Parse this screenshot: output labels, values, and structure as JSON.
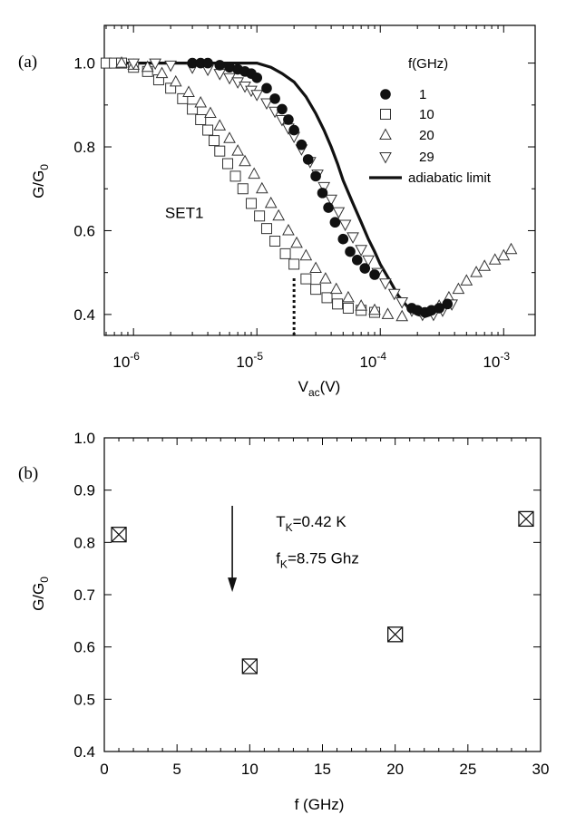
{
  "chart_data": [
    {
      "id": "a",
      "panel_label": "(a)",
      "type": "scatter",
      "xscale": "log",
      "xlabel_main": "V",
      "xlabel_sub": "ac",
      "xlabel_unit": "(V)",
      "ylabel_main": "G/G",
      "ylabel_sub": "0",
      "xlim": [
        5.8e-07,
        0.0018
      ],
      "ylim": [
        0.35,
        1.09
      ],
      "xticks": [
        {
          "value": 1e-06,
          "base": "10",
          "exp": "-6"
        },
        {
          "value": 1e-05,
          "base": "10",
          "exp": "-5"
        },
        {
          "value": 0.0001,
          "base": "10",
          "exp": "-4"
        },
        {
          "value": 0.001,
          "base": "10",
          "exp": "-3"
        }
      ],
      "yticks": [
        {
          "value": 0.4,
          "label": "0.4"
        },
        {
          "value": 0.6,
          "label": "0.6"
        },
        {
          "value": 0.8,
          "label": "0.8"
        },
        {
          "value": 1.0,
          "label": "1.0"
        }
      ],
      "annotation": {
        "text": "SET1",
        "x": 1.8e-06,
        "y": 0.63
      },
      "marker_line": {
        "x": 2e-05,
        "y_from": 0.35,
        "y_to": 0.49
      },
      "legend_title": "f(GHz)",
      "series": [
        {
          "name": "1",
          "marker": "filled-circle",
          "points": [
            [
              3e-06,
              1.0
            ],
            [
              3.5e-06,
              1.0
            ],
            [
              4e-06,
              1.0
            ],
            [
              5e-06,
              0.995
            ],
            [
              6e-06,
              0.99
            ],
            [
              7e-06,
              0.985
            ],
            [
              8e-06,
              0.98
            ],
            [
              9e-06,
              0.975
            ],
            [
              1e-05,
              0.965
            ],
            [
              1.2e-05,
              0.94
            ],
            [
              1.4e-05,
              0.915
            ],
            [
              1.6e-05,
              0.89
            ],
            [
              1.8e-05,
              0.865
            ],
            [
              2e-05,
              0.84
            ],
            [
              2.3e-05,
              0.805
            ],
            [
              2.6e-05,
              0.77
            ],
            [
              3e-05,
              0.73
            ],
            [
              3.4e-05,
              0.69
            ],
            [
              3.8e-05,
              0.655
            ],
            [
              4.3e-05,
              0.62
            ],
            [
              5e-05,
              0.58
            ],
            [
              5.7e-05,
              0.55
            ],
            [
              6.5e-05,
              0.53
            ],
            [
              7.5e-05,
              0.51
            ],
            [
              9e-05,
              0.495
            ],
            [
              0.00018,
              0.415
            ],
            [
              0.0002,
              0.41
            ],
            [
              0.00023,
              0.405
            ],
            [
              0.00026,
              0.41
            ],
            [
              0.0003,
              0.415
            ],
            [
              0.00035,
              0.425
            ]
          ]
        },
        {
          "name": "10",
          "marker": "square",
          "points": [
            [
              6e-07,
              1.0
            ],
            [
              7e-07,
              1.0
            ],
            [
              8e-07,
              1.0
            ],
            [
              1e-06,
              0.99
            ],
            [
              1.3e-06,
              0.98
            ],
            [
              1.6e-06,
              0.96
            ],
            [
              2e-06,
              0.94
            ],
            [
              2.5e-06,
              0.915
            ],
            [
              3e-06,
              0.89
            ],
            [
              3.5e-06,
              0.865
            ],
            [
              4e-06,
              0.84
            ],
            [
              4.5e-06,
              0.815
            ],
            [
              5e-06,
              0.79
            ],
            [
              5.8e-06,
              0.76
            ],
            [
              6.7e-06,
              0.73
            ],
            [
              7.7e-06,
              0.7
            ],
            [
              9e-06,
              0.665
            ],
            [
              1.05e-05,
              0.635
            ],
            [
              1.2e-05,
              0.605
            ],
            [
              1.4e-05,
              0.575
            ],
            [
              1.7e-05,
              0.545
            ],
            [
              2e-05,
              0.52
            ],
            [
              2.5e-05,
              0.485
            ],
            [
              3e-05,
              0.46
            ],
            [
              3.7e-05,
              0.44
            ],
            [
              4.5e-05,
              0.425
            ],
            [
              5.5e-05,
              0.415
            ],
            [
              7e-05,
              0.41
            ],
            [
              9e-05,
              0.405
            ]
          ]
        },
        {
          "name": "20",
          "marker": "triangle-up",
          "points": [
            [
              8e-07,
              1.0
            ],
            [
              1e-06,
              0.995
            ],
            [
              1.3e-06,
              0.99
            ],
            [
              1.7e-06,
              0.975
            ],
            [
              2.2e-06,
              0.955
            ],
            [
              2.8e-06,
              0.93
            ],
            [
              3.5e-06,
              0.905
            ],
            [
              4.2e-06,
              0.88
            ],
            [
              5e-06,
              0.85
            ],
            [
              6e-06,
              0.82
            ],
            [
              7e-06,
              0.79
            ],
            [
              8e-06,
              0.765
            ],
            [
              9.5e-06,
              0.735
            ],
            [
              1.1e-05,
              0.7
            ],
            [
              1.3e-05,
              0.665
            ],
            [
              1.5e-05,
              0.635
            ],
            [
              1.8e-05,
              0.6
            ],
            [
              2.1e-05,
              0.57
            ],
            [
              2.5e-05,
              0.54
            ],
            [
              3e-05,
              0.51
            ],
            [
              3.6e-05,
              0.485
            ],
            [
              4.4e-05,
              0.46
            ],
            [
              5.5e-05,
              0.44
            ],
            [
              7e-05,
              0.42
            ],
            [
              9e-05,
              0.41
            ],
            [
              0.000115,
              0.4
            ],
            [
              0.00015,
              0.395
            ],
            [
              0.0003,
              0.42
            ],
            [
              0.00036,
              0.44
            ],
            [
              0.00043,
              0.46
            ],
            [
              0.0005,
              0.48
            ],
            [
              0.0006,
              0.5
            ],
            [
              0.0007,
              0.515
            ],
            [
              0.00085,
              0.53
            ],
            [
              0.001,
              0.54
            ],
            [
              0.00115,
              0.555
            ]
          ]
        },
        {
          "name": "29",
          "marker": "triangle-down",
          "points": [
            [
              1e-06,
              1.0
            ],
            [
              1.5e-06,
              1.0
            ],
            [
              2e-06,
              0.995
            ],
            [
              3e-06,
              0.99
            ],
            [
              4e-06,
              0.985
            ],
            [
              5e-06,
              0.975
            ],
            [
              6e-06,
              0.965
            ],
            [
              7e-06,
              0.955
            ],
            [
              8e-06,
              0.945
            ],
            [
              9e-06,
              0.935
            ],
            [
              1e-05,
              0.925
            ],
            [
              1.2e-05,
              0.905
            ],
            [
              1.4e-05,
              0.885
            ],
            [
              1.6e-05,
              0.865
            ],
            [
              1.8e-05,
              0.845
            ],
            [
              2e-05,
              0.825
            ],
            [
              2.3e-05,
              0.795
            ],
            [
              2.7e-05,
              0.765
            ],
            [
              3.1e-05,
              0.735
            ],
            [
              3.5e-05,
              0.705
            ],
            [
              4e-05,
              0.675
            ],
            [
              4.6e-05,
              0.645
            ],
            [
              5.2e-05,
              0.615
            ],
            [
              6e-05,
              0.585
            ],
            [
              7e-05,
              0.555
            ],
            [
              8e-05,
              0.53
            ],
            [
              9.5e-05,
              0.5
            ],
            [
              0.00011,
              0.475
            ],
            [
              0.00013,
              0.45
            ],
            [
              0.00015,
              0.43
            ],
            [
              0.00018,
              0.41
            ],
            [
              0.00022,
              0.4
            ],
            [
              0.00027,
              0.4
            ],
            [
              0.00032,
              0.41
            ],
            [
              0.00038,
              0.425
            ]
          ]
        }
      ],
      "line_series": [
        {
          "name": "adiabatic limit",
          "points": [
            [
              6e-07,
              1.0
            ],
            [
              1e-05,
              1.0
            ],
            [
              1.3e-05,
              0.99
            ],
            [
              1.6e-05,
              0.975
            ],
            [
              2e-05,
              0.955
            ],
            [
              2.5e-05,
              0.92
            ],
            [
              3e-05,
              0.88
            ],
            [
              3.5e-05,
              0.84
            ],
            [
              4e-05,
              0.8
            ],
            [
              4.5e-05,
              0.76
            ],
            [
              5e-05,
              0.72
            ],
            [
              6e-05,
              0.665
            ],
            [
              7e-05,
              0.62
            ],
            [
              8e-05,
              0.58
            ],
            [
              9e-05,
              0.55
            ],
            [
              0.0001,
              0.52
            ],
            [
              0.00012,
              0.48
            ],
            [
              0.00014,
              0.445
            ],
            [
              0.00017,
              0.415
            ],
            [
              0.0002,
              0.4
            ],
            [
              0.00023,
              0.395
            ],
            [
              0.00026,
              0.4
            ]
          ]
        }
      ]
    },
    {
      "id": "b",
      "panel_label": "(b)",
      "type": "scatter",
      "xscale": "linear",
      "xlabel": "f (GHz)",
      "ylabel_main": "G/G",
      "ylabel_sub": "0",
      "xlim": [
        0,
        30
      ],
      "ylim": [
        0.4,
        1.0
      ],
      "xticks": [
        0,
        5,
        10,
        15,
        20,
        25,
        30
      ],
      "yticks": [
        {
          "value": 0.4,
          "label": "0.4"
        },
        {
          "value": 0.5,
          "label": "0.5"
        },
        {
          "value": 0.6,
          "label": "0.6"
        },
        {
          "value": 0.7,
          "label": "0.7"
        },
        {
          "value": 0.8,
          "label": "0.8"
        },
        {
          "value": 0.9,
          "label": "0.9"
        },
        {
          "value": 1.0,
          "label": "1.0"
        }
      ],
      "series": [
        {
          "name": "G/G0",
          "marker": "boxed-x",
          "points": [
            [
              1,
              0.815
            ],
            [
              10,
              0.563
            ],
            [
              20,
              0.624
            ],
            [
              29,
              0.845
            ]
          ]
        }
      ],
      "arrow": {
        "x": 8.8,
        "y_from": 0.87,
        "y_to": 0.705
      },
      "annotation": {
        "line1": {
          "main": "T",
          "sub": "K",
          "rest": "=0.42 K"
        },
        "line2": {
          "main": "f",
          "sub": "K",
          "rest": "=8.75 Ghz"
        },
        "x": 11.8,
        "y1": 0.83,
        "y2": 0.76
      }
    }
  ]
}
